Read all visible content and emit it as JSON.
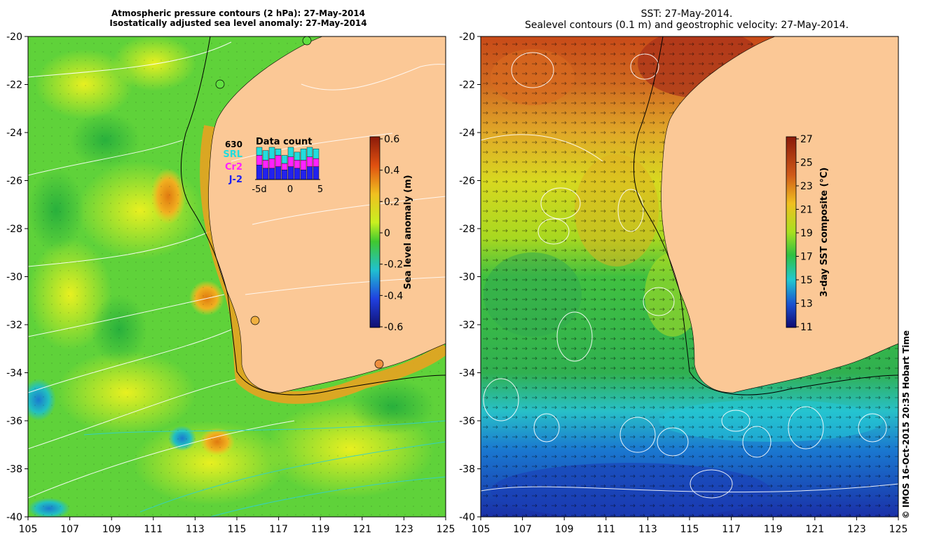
{
  "titles": {
    "left_line1": "Atmospheric pressure contours (2 hPa): 27-May-2014",
    "left_line2": "Isostatically adjusted sea level anomaly: 27-May-2014",
    "right_line1": "SST: 27-May-2014.",
    "right_line2": "Sealevel contours (0.1 m) and geostrophic velocity: 27-May-2014."
  },
  "axes": {
    "lat_ticks": [
      "-20",
      "-22",
      "-24",
      "-26",
      "-28",
      "-30",
      "-32",
      "-34",
      "-36",
      "-38",
      "-40"
    ],
    "lon_ticks": [
      "105",
      "107",
      "109",
      "111",
      "113",
      "115",
      "117",
      "119",
      "121",
      "123",
      "125"
    ]
  },
  "left_colorbar": {
    "label": "Sea level anomaly (m)",
    "ticks": [
      "0.6",
      "0.4",
      "0.2",
      "0",
      "-0.2",
      "-0.4",
      "-0.6"
    ]
  },
  "right_colorbar": {
    "label": "3-day SST composite (°C)",
    "ticks": [
      "27",
      "25",
      "23",
      "21",
      "19",
      "17",
      "15",
      "13",
      "11"
    ]
  },
  "inset": {
    "title": "Data count",
    "count": "630",
    "series": [
      {
        "name": "SRL",
        "color": "#22dddd"
      },
      {
        "name": "Cr2",
        "color": "#ff22ff"
      },
      {
        "name": "J-2",
        "color": "#2222ee"
      }
    ],
    "xticks": [
      "-5d",
      "0",
      "5"
    ],
    "bars": [
      {
        "srl": 0.25,
        "cr2": 0.3,
        "j2": 0.45
      },
      {
        "srl": 0.3,
        "cr2": 0.25,
        "j2": 0.35
      },
      {
        "srl": 0.35,
        "cr2": 0.3,
        "j2": 0.35
      },
      {
        "srl": 0.2,
        "cr2": 0.35,
        "j2": 0.4
      },
      {
        "srl": 0.25,
        "cr2": 0.2,
        "j2": 0.3
      },
      {
        "srl": 0.3,
        "cr2": 0.3,
        "j2": 0.4
      },
      {
        "srl": 0.25,
        "cr2": 0.25,
        "j2": 0.35
      },
      {
        "srl": 0.35,
        "cr2": 0.3,
        "j2": 0.3
      },
      {
        "srl": 0.3,
        "cr2": 0.3,
        "j2": 0.4
      },
      {
        "srl": 0.3,
        "cr2": 0.25,
        "j2": 0.4
      }
    ]
  },
  "credit": "© IMOS 16-Oct-2015 20:35 Hobart Time",
  "colors": {
    "land": "#fbc896",
    "ocean_green": "#5fd23a",
    "ocean_yellow": "#d8f01a",
    "sst_red": "#c8501e",
    "sst_blue": "#1e46c8"
  }
}
